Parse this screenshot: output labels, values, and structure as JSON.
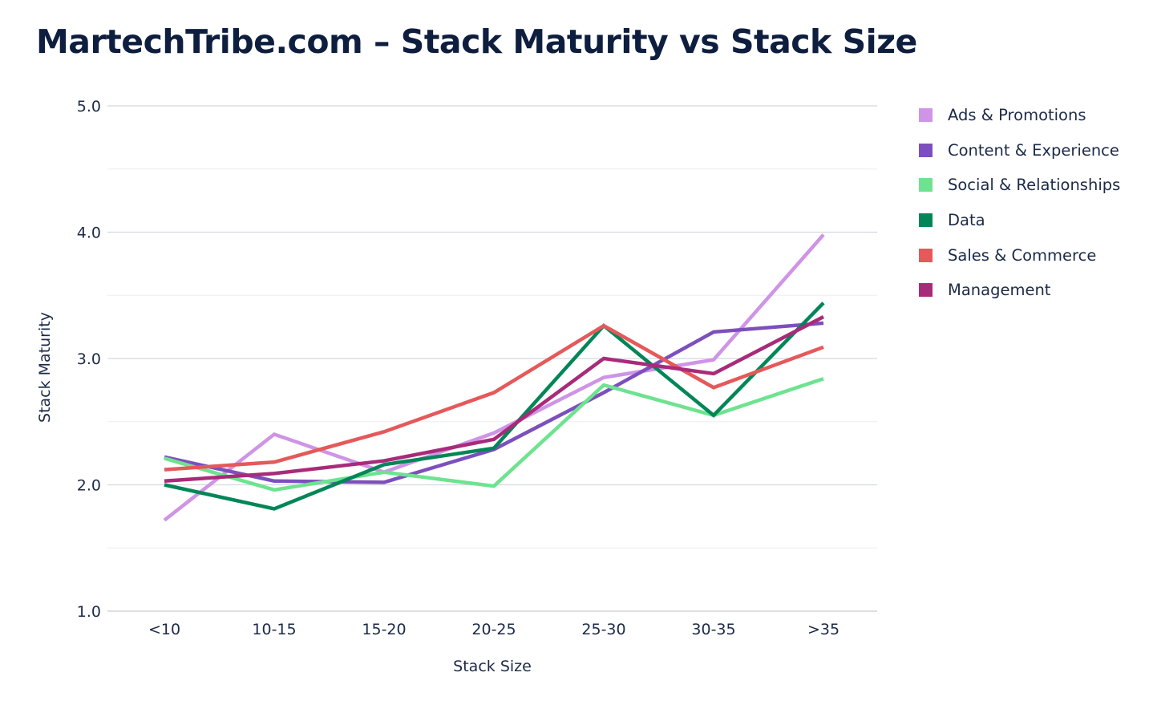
{
  "header": {
    "title": "MartechTribe.com – Stack Maturity vs Stack Size"
  },
  "chart_data": {
    "type": "line",
    "title": "MartechTribe.com – Stack Maturity vs Stack Size",
    "xlabel": "Stack Size",
    "ylabel": "Stack Maturity",
    "categories": [
      "<10",
      "10-15",
      "15-20",
      "20-25",
      "25-30",
      "30-35",
      ">35"
    ],
    "ylim": [
      1.0,
      5.0
    ],
    "yticks": [
      "1.0",
      "2.0",
      "3.0",
      "4.0",
      "5.0"
    ],
    "grid": true,
    "legend_position": "right",
    "series": [
      {
        "name": "Ads & Promotions",
        "color": "#cf94e6",
        "values": [
          1.72,
          2.4,
          2.1,
          2.41,
          2.85,
          2.99,
          3.98
        ]
      },
      {
        "name": "Content & Experience",
        "color": "#7d4fbd",
        "values": [
          2.22,
          2.03,
          2.02,
          2.28,
          2.73,
          3.21,
          3.28
        ]
      },
      {
        "name": "Social & Relationships",
        "color": "#6de38f",
        "values": [
          2.21,
          1.96,
          2.1,
          1.99,
          2.79,
          2.55,
          2.84
        ]
      },
      {
        "name": "Data",
        "color": "#008657",
        "values": [
          2.0,
          1.81,
          2.16,
          2.29,
          3.26,
          2.55,
          3.44
        ]
      },
      {
        "name": "Sales & Commerce",
        "color": "#e5595a",
        "values": [
          2.12,
          2.18,
          2.42,
          2.73,
          3.26,
          2.77,
          3.09
        ]
      },
      {
        "name": "Management",
        "color": "#a82b79",
        "values": [
          2.03,
          2.09,
          2.19,
          2.36,
          3.0,
          2.88,
          3.33
        ]
      }
    ]
  }
}
